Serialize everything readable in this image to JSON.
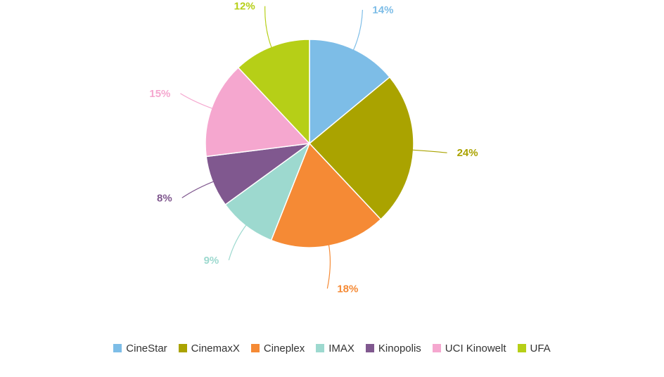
{
  "chart_data": {
    "type": "pie",
    "title": "",
    "legend_position": "bottom",
    "slices": [
      {
        "label": "CineStar",
        "value": 14,
        "display": "14%",
        "color": "#7dbde7"
      },
      {
        "label": "CinemaxX",
        "value": 24,
        "display": "24%",
        "color": "#aaa300"
      },
      {
        "label": "Cineplex",
        "value": 18,
        "display": "18%",
        "color": "#f58a35"
      },
      {
        "label": "IMAX",
        "value": 9,
        "display": "9%",
        "color": "#9dd9cf"
      },
      {
        "label": "Kinopolis",
        "value": 8,
        "display": "8%",
        "color": "#80588f"
      },
      {
        "label": "UCI Kinowelt",
        "value": 15,
        "display": "15%",
        "color": "#f5a7cf"
      },
      {
        "label": "UFA",
        "value": 12,
        "display": "12%",
        "color": "#b6cf17"
      }
    ]
  }
}
